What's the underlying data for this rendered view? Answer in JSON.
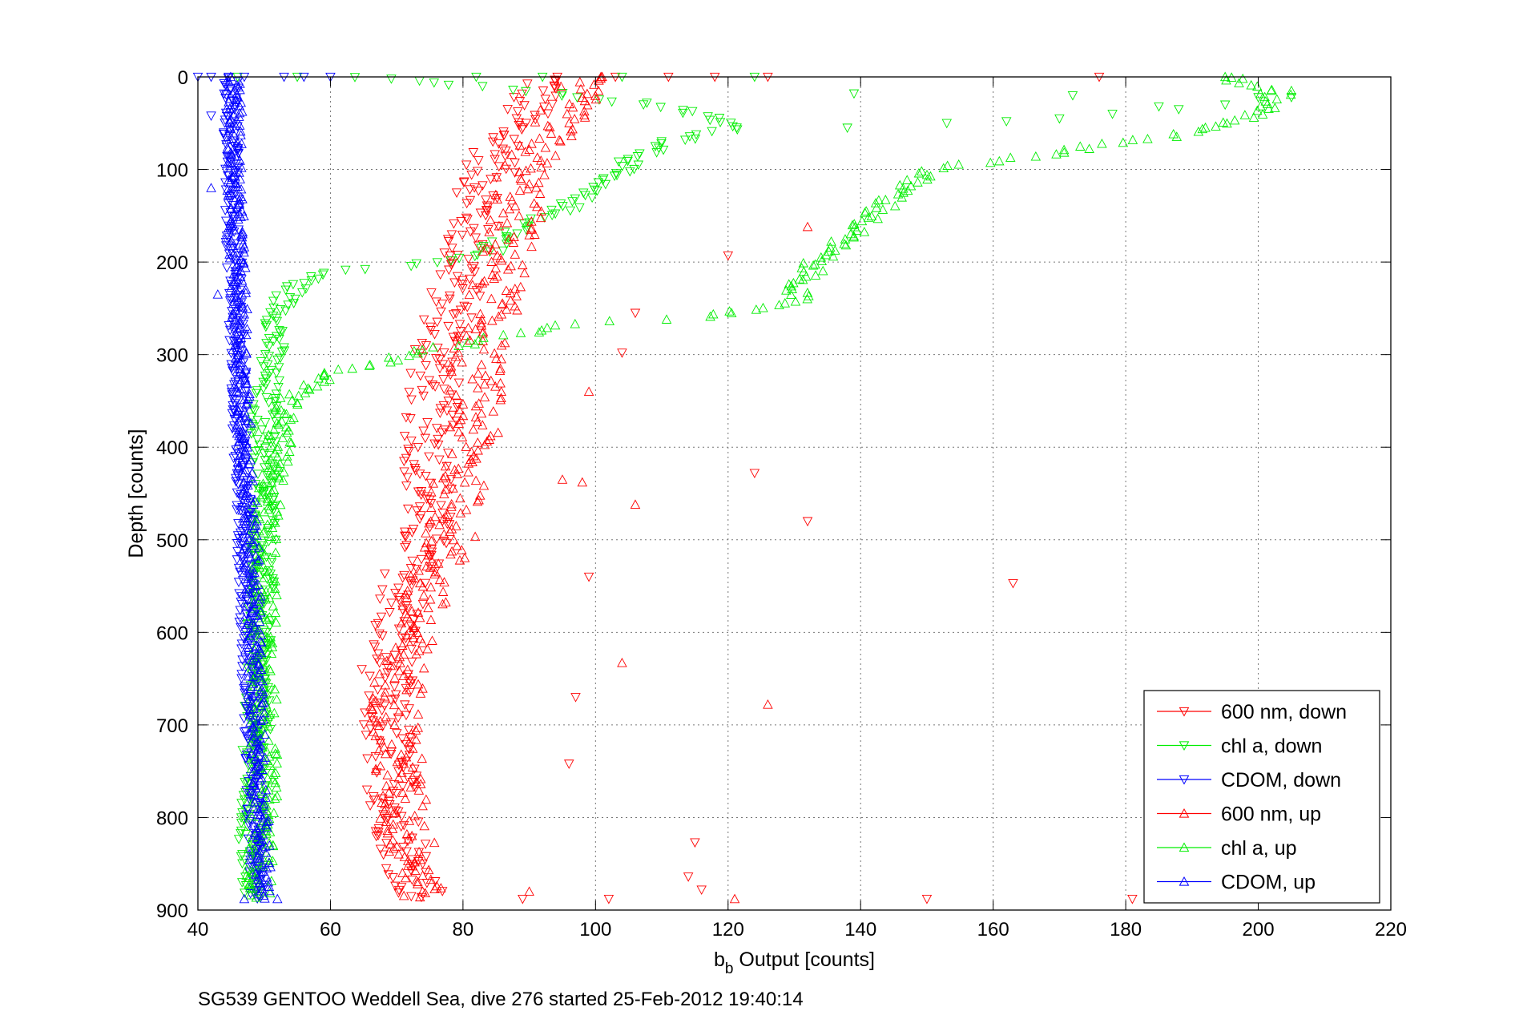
{
  "chart_data": {
    "type": "scatter",
    "xlabel_main": "b",
    "xlabel_sub": "b",
    "xlabel_rest": " Output [counts]",
    "ylabel": "Depth [counts]",
    "caption": "SG539 GENTOO Weddell Sea, dive 276 started 25-Feb-2012 19:40:14",
    "xlim": [
      40,
      220
    ],
    "ylim": [
      0,
      900
    ],
    "y_reversed": true,
    "grid": true,
    "legend_position": "bottom-right",
    "xticks": [
      "40",
      "60",
      "80",
      "100",
      "120",
      "140",
      "160",
      "180",
      "200",
      "220"
    ],
    "yticks": [
      "0",
      "100",
      "200",
      "300",
      "400",
      "500",
      "600",
      "700",
      "800",
      "900"
    ],
    "series": [
      {
        "name": "600 nm, down",
        "color": "#ff0000",
        "marker": "triangle-down",
        "profile": [
          [
            0,
            93
          ],
          [
            30,
            90
          ],
          [
            60,
            87
          ],
          [
            100,
            84
          ],
          [
            150,
            82
          ],
          [
            200,
            80
          ],
          [
            260,
            78
          ],
          [
            300,
            76
          ],
          [
            380,
            75
          ],
          [
            440,
            75
          ],
          [
            500,
            74
          ],
          [
            560,
            71
          ],
          [
            620,
            69
          ],
          [
            680,
            68
          ],
          [
            740,
            69
          ],
          [
            800,
            70
          ],
          [
            850,
            72
          ],
          [
            888,
            74
          ]
        ],
        "spread": 4,
        "outliers": [
          [
            103,
            0
          ],
          [
            111,
            0
          ],
          [
            118,
            0
          ],
          [
            126,
            0
          ],
          [
            176,
            0
          ],
          [
            120,
            193
          ],
          [
            106,
            255
          ],
          [
            104,
            298
          ],
          [
            124,
            428
          ],
          [
            132,
            480
          ],
          [
            163,
            547
          ],
          [
            99,
            540
          ],
          [
            97,
            670
          ],
          [
            96,
            742
          ],
          [
            115,
            827
          ],
          [
            114,
            864
          ],
          [
            116,
            878
          ],
          [
            150,
            888
          ],
          [
            181,
            888
          ],
          [
            102,
            888
          ],
          [
            89,
            888
          ]
        ]
      },
      {
        "name": "chl a, down",
        "color": "#00ee00",
        "marker": "triangle-down",
        "profile": [
          [
            0,
            64
          ],
          [
            15,
            90
          ],
          [
            30,
            108
          ],
          [
            45,
            118
          ],
          [
            55,
            121
          ],
          [
            70,
            112
          ],
          [
            90,
            106
          ],
          [
            115,
            100
          ],
          [
            140,
            96
          ],
          [
            160,
            90
          ],
          [
            175,
            86
          ],
          [
            190,
            84
          ],
          [
            200,
            76
          ],
          [
            205,
            70
          ],
          [
            210,
            60
          ],
          [
            220,
            56
          ],
          [
            240,
            53
          ],
          [
            270,
            52
          ],
          [
            300,
            51
          ],
          [
            350,
            50
          ],
          [
            400,
            50
          ],
          [
            500,
            50
          ],
          [
            600,
            49
          ],
          [
            700,
            49
          ],
          [
            800,
            48
          ],
          [
            888,
            48
          ]
        ],
        "spread": 2,
        "outliers": [
          [
            46,
            0
          ],
          [
            55,
            0
          ],
          [
            82,
            0
          ],
          [
            92,
            0
          ],
          [
            104,
            0
          ],
          [
            124,
            0
          ],
          [
            138,
            55
          ],
          [
            139,
            18
          ],
          [
            153,
            50
          ],
          [
            162,
            48
          ],
          [
            170,
            45
          ],
          [
            172,
            20
          ],
          [
            178,
            40
          ],
          [
            185,
            32
          ],
          [
            188,
            35
          ],
          [
            195,
            30
          ],
          [
            200,
            22
          ],
          [
            205,
            22
          ]
        ]
      },
      {
        "name": "CDOM, down",
        "color": "#0000ff",
        "marker": "triangle-down",
        "profile": [
          [
            0,
            45
          ],
          [
            100,
            45
          ],
          [
            200,
            45.5
          ],
          [
            300,
            46
          ],
          [
            400,
            46.5
          ],
          [
            500,
            47
          ],
          [
            600,
            47.5
          ],
          [
            700,
            48
          ],
          [
            800,
            48.5
          ],
          [
            888,
            49
          ]
        ],
        "spread": 1.2,
        "outliers": [
          [
            40,
            0
          ],
          [
            42,
            0
          ],
          [
            47,
            0
          ],
          [
            53,
            0
          ],
          [
            56,
            0
          ],
          [
            60,
            0
          ],
          [
            42,
            42
          ]
        ]
      },
      {
        "name": "600 nm, up",
        "color": "#ff0000",
        "marker": "triangle-up",
        "profile": [
          [
            0,
            97
          ],
          [
            30,
            96
          ],
          [
            60,
            93
          ],
          [
            100,
            89
          ],
          [
            150,
            88
          ],
          [
            200,
            86
          ],
          [
            260,
            84
          ],
          [
            300,
            82
          ],
          [
            350,
            82
          ],
          [
            400,
            81
          ],
          [
            450,
            79
          ],
          [
            500,
            78
          ],
          [
            560,
            74
          ],
          [
            620,
            71
          ],
          [
            680,
            70
          ],
          [
            740,
            70
          ],
          [
            800,
            71
          ],
          [
            850,
            73
          ],
          [
            888,
            75
          ]
        ],
        "spread": 4,
        "outliers": [
          [
            101,
            0
          ],
          [
            132,
            162
          ],
          [
            99,
            340
          ],
          [
            106,
            462
          ],
          [
            95,
            435
          ],
          [
            98,
            438
          ],
          [
            104,
            633
          ],
          [
            126,
            678
          ],
          [
            121,
            888
          ],
          [
            90,
            880
          ]
        ]
      },
      {
        "name": "chl a, up",
        "color": "#00ee00",
        "marker": "triangle-up",
        "profile": [
          [
            0,
            195
          ],
          [
            20,
            203
          ],
          [
            40,
            200
          ],
          [
            60,
            191
          ],
          [
            70,
            178
          ],
          [
            80,
            172
          ],
          [
            90,
            162
          ],
          [
            100,
            150
          ],
          [
            130,
            145
          ],
          [
            160,
            140
          ],
          [
            200,
            133
          ],
          [
            240,
            130
          ],
          [
            260,
            117
          ],
          [
            265,
            99
          ],
          [
            270,
            94
          ],
          [
            280,
            86
          ],
          [
            300,
            72
          ],
          [
            320,
            60
          ],
          [
            340,
            55
          ],
          [
            360,
            53
          ],
          [
            400,
            52
          ],
          [
            450,
            51
          ],
          [
            500,
            50
          ],
          [
            600,
            50
          ],
          [
            700,
            50
          ],
          [
            800,
            50
          ],
          [
            888,
            49
          ]
        ],
        "spread": 2,
        "outliers": [
          [
            205,
            15
          ],
          [
            195,
            0
          ]
        ]
      },
      {
        "name": "CDOM, up",
        "color": "#0000ff",
        "marker": "triangle-up",
        "profile": [
          [
            0,
            45.5
          ],
          [
            100,
            45.5
          ],
          [
            200,
            46
          ],
          [
            300,
            46.5
          ],
          [
            400,
            47
          ],
          [
            500,
            48
          ],
          [
            600,
            48.5
          ],
          [
            700,
            49
          ],
          [
            800,
            49.5
          ],
          [
            888,
            50
          ]
        ],
        "spread": 1.2,
        "outliers": [
          [
            42,
            120
          ],
          [
            43,
            235
          ],
          [
            47,
            888
          ],
          [
            52,
            888
          ]
        ]
      }
    ]
  }
}
